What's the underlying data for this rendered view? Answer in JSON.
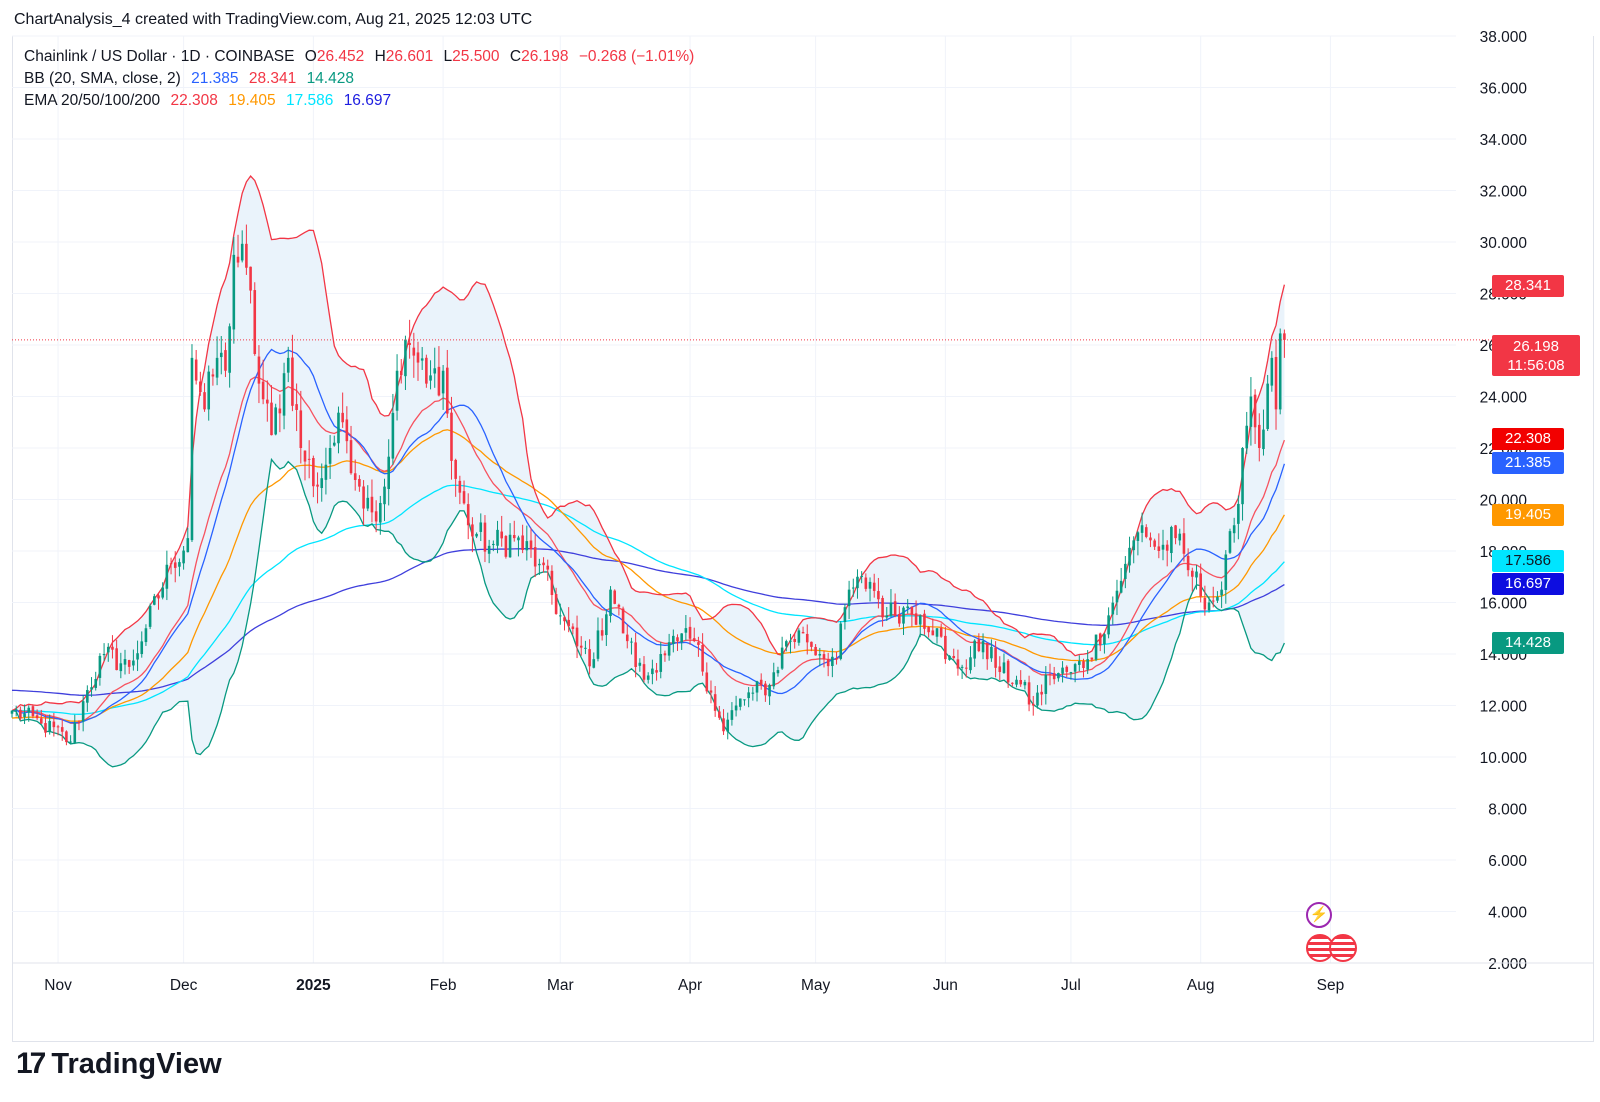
{
  "header": {
    "text": "ChartAnalysis_4 created with TradingView.com, Aug 21, 2025 12:03 UTC"
  },
  "legend": {
    "symbol": "Chainlink / US Dollar · 1D · COINBASE",
    "ohlc": [
      {
        "label": "O",
        "value": "26.452"
      },
      {
        "label": "H",
        "value": "26.601"
      },
      {
        "label": "L",
        "value": "25.500"
      },
      {
        "label": "C",
        "value": "26.198"
      }
    ],
    "change": "−0.268 (−1.01%)",
    "bb_label": "BB (20, SMA, close, 2)",
    "bb_values": {
      "basis": "21.385",
      "upper": "28.341",
      "lower": "14.428"
    },
    "ema_label": "EMA 20/50/100/200",
    "ema_values": {
      "ema20": "22.308",
      "ema50": "19.405",
      "ema100": "17.586",
      "ema200": "16.697"
    }
  },
  "price_tags": {
    "bb_upper": "28.341",
    "current_price": "26.198",
    "countdown": "11:56:08",
    "ema20": "22.308",
    "bb_basis": "21.385",
    "ema50": "19.405",
    "ema100": "17.586",
    "ema200": "16.697",
    "bb_lower": "14.428"
  },
  "logo": {
    "text": "TradingView",
    "mark": "17"
  },
  "colors": {
    "up": "#089981",
    "down": "#f23645",
    "bb_upper": "#f23645",
    "bb_basis": "#2962ff",
    "bb_lower": "#089981",
    "bb_fill": "#eaf3fb",
    "ema20": "#f7525f",
    "ema50": "#ff9800",
    "ema100": "#00e5ff",
    "ema200": "#3f3fdc",
    "grid": "#f0f3fa",
    "axis_text": "#131722"
  },
  "chart_data": {
    "type": "candlestick",
    "title": "Chainlink / US Dollar · 1D · COINBASE",
    "ylim": [
      2,
      38
    ],
    "y_ticks": [
      "38.000",
      "36.000",
      "34.000",
      "32.000",
      "30.000",
      "28.000",
      "26.000",
      "24.000",
      "22.000",
      "20.000",
      "18.000",
      "16.000",
      "14.000",
      "12.000",
      "10.000",
      "8.000",
      "6.000",
      "4.000",
      "2.000"
    ],
    "x_ticks": [
      "Nov",
      "Dec",
      "2025",
      "Feb",
      "Mar",
      "Apr",
      "May",
      "Jun",
      "Jul",
      "Aug",
      "Sep"
    ],
    "x_tick_dates": [
      "2024-11-01",
      "2024-12-01",
      "2025-01-01",
      "2025-02-01",
      "2025-03-01",
      "2025-04-01",
      "2025-05-01",
      "2025-06-01",
      "2025-07-01",
      "2025-08-01",
      "2025-09-01"
    ],
    "x_range": [
      "2024-10-21",
      "2025-10-01"
    ],
    "close_anchors": [
      {
        "date": "2024-10-21",
        "close": 11.8
      },
      {
        "date": "2024-10-28",
        "close": 11.3
      },
      {
        "date": "2024-11-04",
        "close": 10.6
      },
      {
        "date": "2024-11-08",
        "close": 12.6
      },
      {
        "date": "2024-11-12",
        "close": 14.0
      },
      {
        "date": "2024-11-18",
        "close": 13.5
      },
      {
        "date": "2024-11-22",
        "close": 15.0
      },
      {
        "date": "2024-11-28",
        "close": 17.5
      },
      {
        "date": "2024-12-02",
        "close": 18.5
      },
      {
        "date": "2024-12-03",
        "close": 25.5
      },
      {
        "date": "2024-12-06",
        "close": 23.5
      },
      {
        "date": "2024-12-09",
        "close": 25.5
      },
      {
        "date": "2024-12-11",
        "close": 25.0
      },
      {
        "date": "2024-12-13",
        "close": 29.5
      },
      {
        "date": "2024-12-16",
        "close": 29.0
      },
      {
        "date": "2024-12-19",
        "close": 24.5
      },
      {
        "date": "2024-12-22",
        "close": 22.5
      },
      {
        "date": "2024-12-26",
        "close": 25.5
      },
      {
        "date": "2024-12-29",
        "close": 22.0
      },
      {
        "date": "2025-01-02",
        "close": 20.5
      },
      {
        "date": "2025-01-05",
        "close": 22.0
      },
      {
        "date": "2025-01-08",
        "close": 23.0
      },
      {
        "date": "2025-01-12",
        "close": 20.5
      },
      {
        "date": "2025-01-15",
        "close": 19.5
      },
      {
        "date": "2025-01-18",
        "close": 20.5
      },
      {
        "date": "2025-01-21",
        "close": 25.0
      },
      {
        "date": "2025-01-24",
        "close": 26.0
      },
      {
        "date": "2025-01-28",
        "close": 24.5
      },
      {
        "date": "2025-02-01",
        "close": 25.0
      },
      {
        "date": "2025-02-03",
        "close": 21.5
      },
      {
        "date": "2025-02-07",
        "close": 19.0
      },
      {
        "date": "2025-02-12",
        "close": 18.2
      },
      {
        "date": "2025-02-18",
        "close": 18.5
      },
      {
        "date": "2025-02-24",
        "close": 17.5
      },
      {
        "date": "2025-03-01",
        "close": 15.5
      },
      {
        "date": "2025-03-05",
        "close": 14.3
      },
      {
        "date": "2025-03-09",
        "close": 13.8
      },
      {
        "date": "2025-03-13",
        "close": 16.5
      },
      {
        "date": "2025-03-17",
        "close": 14.5
      },
      {
        "date": "2025-03-21",
        "close": 13.0
      },
      {
        "date": "2025-03-25",
        "close": 14.0
      },
      {
        "date": "2025-03-29",
        "close": 14.5
      },
      {
        "date": "2025-04-02",
        "close": 14.5
      },
      {
        "date": "2025-04-06",
        "close": 12.5
      },
      {
        "date": "2025-04-09",
        "close": 11.0
      },
      {
        "date": "2025-04-12",
        "close": 12.0
      },
      {
        "date": "2025-04-16",
        "close": 12.5
      },
      {
        "date": "2025-04-20",
        "close": 12.8
      },
      {
        "date": "2025-04-24",
        "close": 14.5
      },
      {
        "date": "2025-04-28",
        "close": 14.8
      },
      {
        "date": "2025-05-02",
        "close": 14.0
      },
      {
        "date": "2025-05-06",
        "close": 13.8
      },
      {
        "date": "2025-05-09",
        "close": 16.5
      },
      {
        "date": "2025-05-14",
        "close": 16.8
      },
      {
        "date": "2025-05-18",
        "close": 15.5
      },
      {
        "date": "2025-05-22",
        "close": 15.8
      },
      {
        "date": "2025-05-26",
        "close": 15.5
      },
      {
        "date": "2025-05-30",
        "close": 15.0
      },
      {
        "date": "2025-06-01",
        "close": 13.8
      },
      {
        "date": "2025-06-05",
        "close": 13.5
      },
      {
        "date": "2025-06-10",
        "close": 14.5
      },
      {
        "date": "2025-06-14",
        "close": 13.3
      },
      {
        "date": "2025-06-18",
        "close": 13.0
      },
      {
        "date": "2025-06-22",
        "close": 12.0
      },
      {
        "date": "2025-06-26",
        "close": 13.2
      },
      {
        "date": "2025-07-01",
        "close": 13.3
      },
      {
        "date": "2025-07-05",
        "close": 13.8
      },
      {
        "date": "2025-07-10",
        "close": 15.5
      },
      {
        "date": "2025-07-14",
        "close": 17.5
      },
      {
        "date": "2025-07-18",
        "close": 19.0
      },
      {
        "date": "2025-07-22",
        "close": 18.0
      },
      {
        "date": "2025-07-26",
        "close": 18.5
      },
      {
        "date": "2025-07-30",
        "close": 17.0
      },
      {
        "date": "2025-08-03",
        "close": 16.0
      },
      {
        "date": "2025-08-06",
        "close": 16.5
      },
      {
        "date": "2025-08-09",
        "close": 19.0
      },
      {
        "date": "2025-08-11",
        "close": 22.0
      },
      {
        "date": "2025-08-13",
        "close": 24.0
      },
      {
        "date": "2025-08-15",
        "close": 22.0
      },
      {
        "date": "2025-08-17",
        "close": 24.5
      },
      {
        "date": "2025-08-18",
        "close": 25.5
      },
      {
        "date": "2025-08-19",
        "close": 23.5
      },
      {
        "date": "2025-08-20",
        "close": 26.45
      },
      {
        "date": "2025-08-21",
        "close": 26.198
      }
    ],
    "last_candle": {
      "date": "2025-08-21",
      "open": 26.452,
      "high": 26.601,
      "low": 25.5,
      "close": 26.198
    },
    "last_values": {
      "bb_upper": 28.341,
      "bb_basis": 21.385,
      "bb_lower": 14.428,
      "ema20": 22.308,
      "ema50": 19.405,
      "ema100": 17.586,
      "ema200": 16.697
    }
  }
}
